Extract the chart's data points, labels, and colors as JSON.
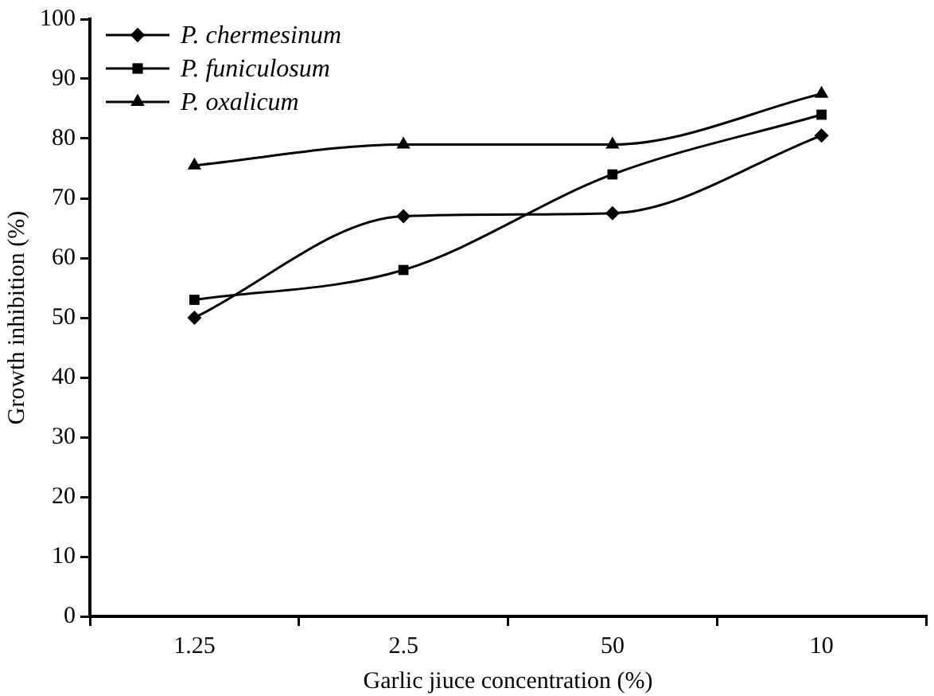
{
  "chart_data": {
    "type": "line",
    "xlabel": "Garlic jiuce concentration (%)",
    "ylabel": "Growth inhibition (%)",
    "categories": [
      "1.25",
      "2.5",
      "50",
      "10"
    ],
    "ylim": [
      0,
      100
    ],
    "yticks": [
      0,
      10,
      20,
      30,
      40,
      50,
      60,
      70,
      80,
      90,
      100
    ],
    "grid": false,
    "legend": "top left",
    "series": [
      {
        "name": "P. chermesinum",
        "color": "#000000",
        "marker": "diamond",
        "values": [
          50,
          67,
          67.5,
          80.5
        ]
      },
      {
        "name": "P. funiculosum",
        "color": "#000000",
        "marker": "square",
        "values": [
          53,
          58,
          74,
          84
        ]
      },
      {
        "name": "P. oxalicum",
        "color": "#000000",
        "marker": "triangle",
        "values": [
          75.5,
          79,
          79,
          87.5
        ]
      }
    ]
  }
}
